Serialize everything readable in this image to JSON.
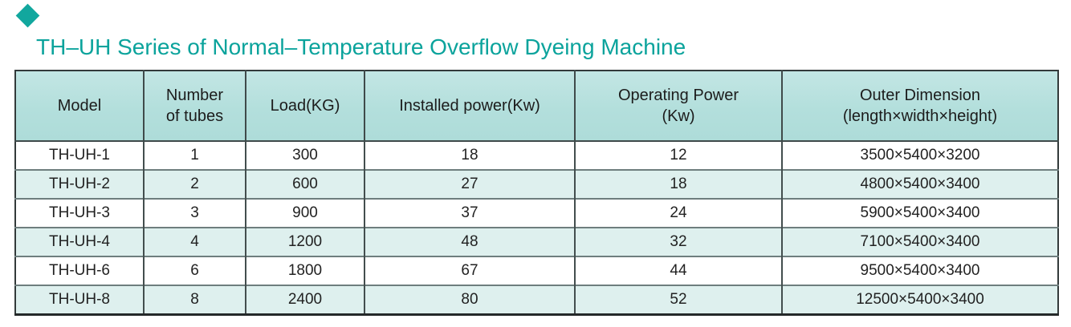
{
  "title": "TH–UH Series of Normal–Temperature Overflow Dyeing Machine",
  "icons": {
    "bullet": "diamond-icon"
  },
  "colors": {
    "accent_teal": "#0ba39c",
    "diamond_teal": "#12a79e",
    "header_bg": "#b3dfdc",
    "stripe_bg": "#def0ee",
    "row_bg": "#ffffff",
    "grid_vertical": "#434e4e",
    "grid_horizontal": "#6e7e7e",
    "outer_border": "#333a3a",
    "text": "#222222"
  },
  "table": {
    "columns": [
      {
        "label": "Model"
      },
      {
        "label": "Number\nof tubes"
      },
      {
        "label": "Load(KG)"
      },
      {
        "label": "Installed power(Kw)"
      },
      {
        "label": "Operating Power\n(Kw)"
      },
      {
        "label": "Outer Dimension\n(length×width×height)"
      }
    ],
    "rows": [
      {
        "cells": [
          "TH-UH-1",
          "1",
          "300",
          "18",
          "12",
          "3500×5400×3200"
        ]
      },
      {
        "cells": [
          "TH-UH-2",
          "2",
          "600",
          "27",
          "18",
          "4800×5400×3400"
        ]
      },
      {
        "cells": [
          "TH-UH-3",
          "3",
          "900",
          "37",
          "24",
          "5900×5400×3400"
        ]
      },
      {
        "cells": [
          "TH-UH-4",
          "4",
          "1200",
          "48",
          "32",
          "7100×5400×3400"
        ]
      },
      {
        "cells": [
          "TH-UH-6",
          "6",
          "1800",
          "67",
          "44",
          "9500×5400×3400"
        ]
      },
      {
        "cells": [
          "TH-UH-8",
          "8",
          "2400",
          "80",
          "52",
          "12500×5400×3400"
        ]
      }
    ]
  }
}
